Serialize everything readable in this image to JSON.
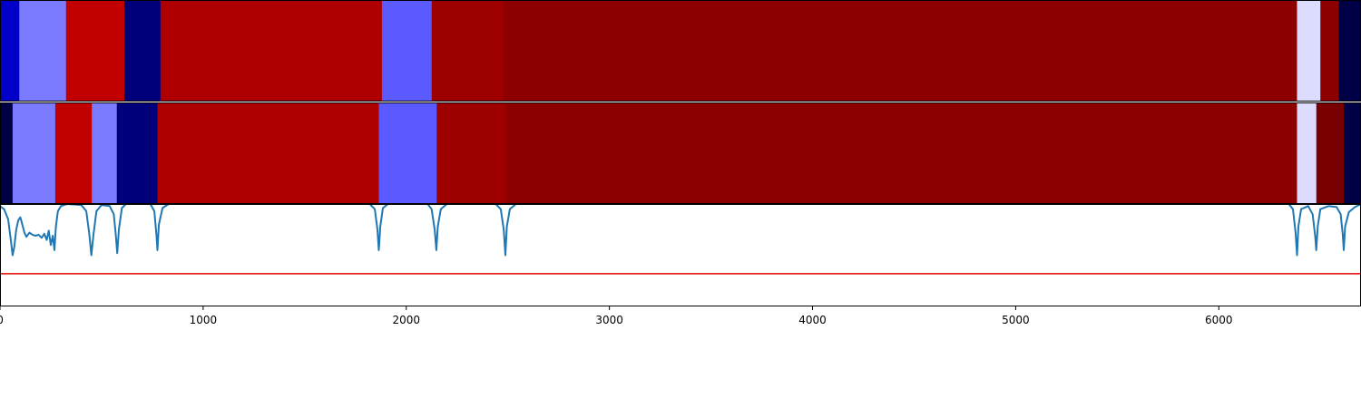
{
  "chart_data": {
    "type": "heatmap",
    "title": "",
    "xlabel": "",
    "ylabel": "",
    "xlim": [
      0,
      6700
    ],
    "xticks": [
      0,
      1000,
      2000,
      3000,
      4000,
      5000,
      6000
    ],
    "xtick_labels": [
      "0",
      "1000",
      "2000",
      "3000",
      "4000",
      "5000",
      "6000"
    ],
    "grid": false,
    "rows": [
      {
        "segments": [
          {
            "start": 0,
            "end": 95,
            "color": "#0000c8"
          },
          {
            "start": 95,
            "end": 325,
            "color": "#7b7bff"
          },
          {
            "start": 325,
            "end": 612,
            "color": "#c10000"
          },
          {
            "start": 612,
            "end": 790,
            "color": "#00007b"
          },
          {
            "start": 790,
            "end": 1880,
            "color": "#ae0000"
          },
          {
            "start": 1880,
            "end": 2125,
            "color": "#5a5aff"
          },
          {
            "start": 2125,
            "end": 2480,
            "color": "#9e0000"
          },
          {
            "start": 2480,
            "end": 6385,
            "color": "#8c0000"
          },
          {
            "start": 6385,
            "end": 6500,
            "color": "#dcdcff"
          },
          {
            "start": 6500,
            "end": 6590,
            "color": "#8c0000"
          },
          {
            "start": 6590,
            "end": 6700,
            "color": "#000046"
          }
        ]
      },
      {
        "segments": [
          {
            "start": 0,
            "end": 62,
            "color": "#000046"
          },
          {
            "start": 62,
            "end": 272,
            "color": "#7b7bff"
          },
          {
            "start": 272,
            "end": 452,
            "color": "#c10000"
          },
          {
            "start": 452,
            "end": 575,
            "color": "#7b7bff"
          },
          {
            "start": 575,
            "end": 775,
            "color": "#00007b"
          },
          {
            "start": 775,
            "end": 1865,
            "color": "#ae0000"
          },
          {
            "start": 1865,
            "end": 2150,
            "color": "#5a5aff"
          },
          {
            "start": 2150,
            "end": 2490,
            "color": "#9e0000"
          },
          {
            "start": 2490,
            "end": 6385,
            "color": "#8c0000"
          },
          {
            "start": 6385,
            "end": 6480,
            "color": "#dcdcff"
          },
          {
            "start": 6480,
            "end": 6615,
            "color": "#780000"
          },
          {
            "start": 6615,
            "end": 6700,
            "color": "#000046"
          }
        ]
      }
    ],
    "line_panel": {
      "ylim": [
        0,
        1
      ],
      "threshold": 0.32,
      "threshold_color": "#e00000",
      "line_color": "#1f77b4",
      "points": [
        [
          0,
          0.98
        ],
        [
          20,
          0.95
        ],
        [
          40,
          0.85
        ],
        [
          55,
          0.62
        ],
        [
          62,
          0.5
        ],
        [
          70,
          0.58
        ],
        [
          80,
          0.75
        ],
        [
          90,
          0.84
        ],
        [
          100,
          0.87
        ],
        [
          110,
          0.8
        ],
        [
          120,
          0.72
        ],
        [
          130,
          0.68
        ],
        [
          145,
          0.72
        ],
        [
          160,
          0.7
        ],
        [
          175,
          0.69
        ],
        [
          190,
          0.7
        ],
        [
          205,
          0.67
        ],
        [
          218,
          0.71
        ],
        [
          230,
          0.65
        ],
        [
          240,
          0.74
        ],
        [
          250,
          0.6
        ],
        [
          260,
          0.69
        ],
        [
          268,
          0.55
        ],
        [
          275,
          0.78
        ],
        [
          285,
          0.93
        ],
        [
          300,
          0.98
        ],
        [
          330,
          1.0
        ],
        [
          400,
          0.99
        ],
        [
          425,
          0.93
        ],
        [
          440,
          0.7
        ],
        [
          450,
          0.5
        ],
        [
          460,
          0.7
        ],
        [
          475,
          0.93
        ],
        [
          500,
          0.99
        ],
        [
          540,
          0.98
        ],
        [
          560,
          0.9
        ],
        [
          570,
          0.7
        ],
        [
          577,
          0.52
        ],
        [
          585,
          0.75
        ],
        [
          600,
          0.96
        ],
        [
          620,
          1.0
        ],
        [
          740,
          1.0
        ],
        [
          760,
          0.93
        ],
        [
          770,
          0.7
        ],
        [
          775,
          0.55
        ],
        [
          782,
          0.8
        ],
        [
          800,
          0.96
        ],
        [
          830,
          1.0
        ],
        [
          1820,
          1.0
        ],
        [
          1845,
          0.95
        ],
        [
          1858,
          0.75
        ],
        [
          1865,
          0.55
        ],
        [
          1872,
          0.78
        ],
        [
          1885,
          0.96
        ],
        [
          1910,
          1.0
        ],
        [
          2105,
          1.0
        ],
        [
          2125,
          0.95
        ],
        [
          2140,
          0.75
        ],
        [
          2148,
          0.55
        ],
        [
          2155,
          0.78
        ],
        [
          2170,
          0.95
        ],
        [
          2200,
          1.0
        ],
        [
          2440,
          1.0
        ],
        [
          2465,
          0.95
        ],
        [
          2480,
          0.75
        ],
        [
          2488,
          0.5
        ],
        [
          2495,
          0.78
        ],
        [
          2510,
          0.95
        ],
        [
          2540,
          1.0
        ],
        [
          6345,
          1.0
        ],
        [
          6365,
          0.95
        ],
        [
          6378,
          0.72
        ],
        [
          6385,
          0.5
        ],
        [
          6392,
          0.78
        ],
        [
          6405,
          0.95
        ],
        [
          6440,
          0.98
        ],
        [
          6462,
          0.9
        ],
        [
          6475,
          0.68
        ],
        [
          6480,
          0.55
        ],
        [
          6487,
          0.78
        ],
        [
          6500,
          0.95
        ],
        [
          6540,
          0.98
        ],
        [
          6580,
          0.97
        ],
        [
          6600,
          0.9
        ],
        [
          6610,
          0.7
        ],
        [
          6615,
          0.55
        ],
        [
          6622,
          0.78
        ],
        [
          6640,
          0.92
        ],
        [
          6670,
          0.97
        ],
        [
          6700,
          1.0
        ]
      ]
    }
  }
}
